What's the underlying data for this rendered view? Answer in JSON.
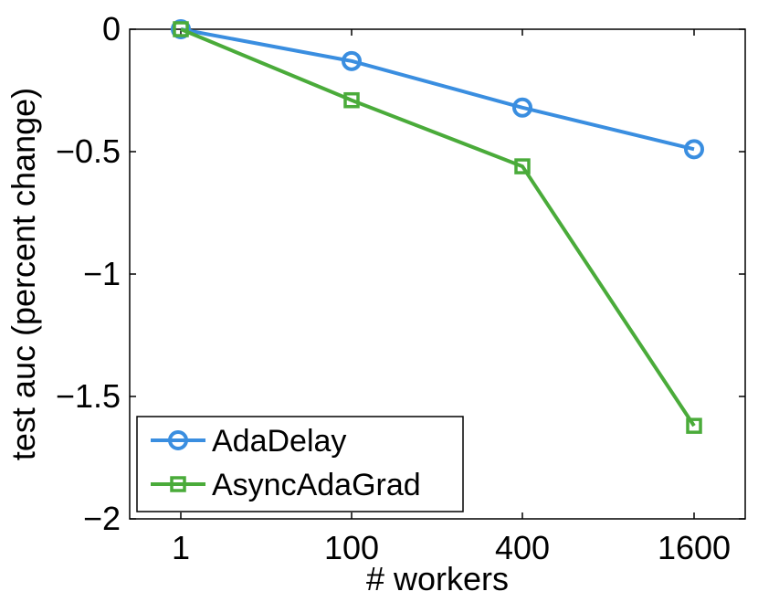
{
  "chart_data": {
    "type": "line",
    "categories": [
      "1",
      "100",
      "400",
      "1600"
    ],
    "xlabel": "# workers",
    "ylabel": "test auc (percent change)",
    "ylim": [
      -2,
      0
    ],
    "yticks": [
      0,
      -0.5,
      -1,
      -1.5,
      -2
    ],
    "ytick_labels": [
      "0",
      "−0.5",
      "−1",
      "−1.5",
      "−2"
    ],
    "grid": false,
    "legend_position": "bottom-left",
    "series": [
      {
        "name": "AdaDelay",
        "values": [
          0,
          -0.13,
          -0.32,
          -0.49
        ],
        "color": "#3a8ee0",
        "marker": "circle"
      },
      {
        "name": "AsyncAdaGrad",
        "values": [
          0,
          -0.29,
          -0.56,
          -1.62
        ],
        "color": "#4aab3a",
        "marker": "square"
      }
    ]
  }
}
